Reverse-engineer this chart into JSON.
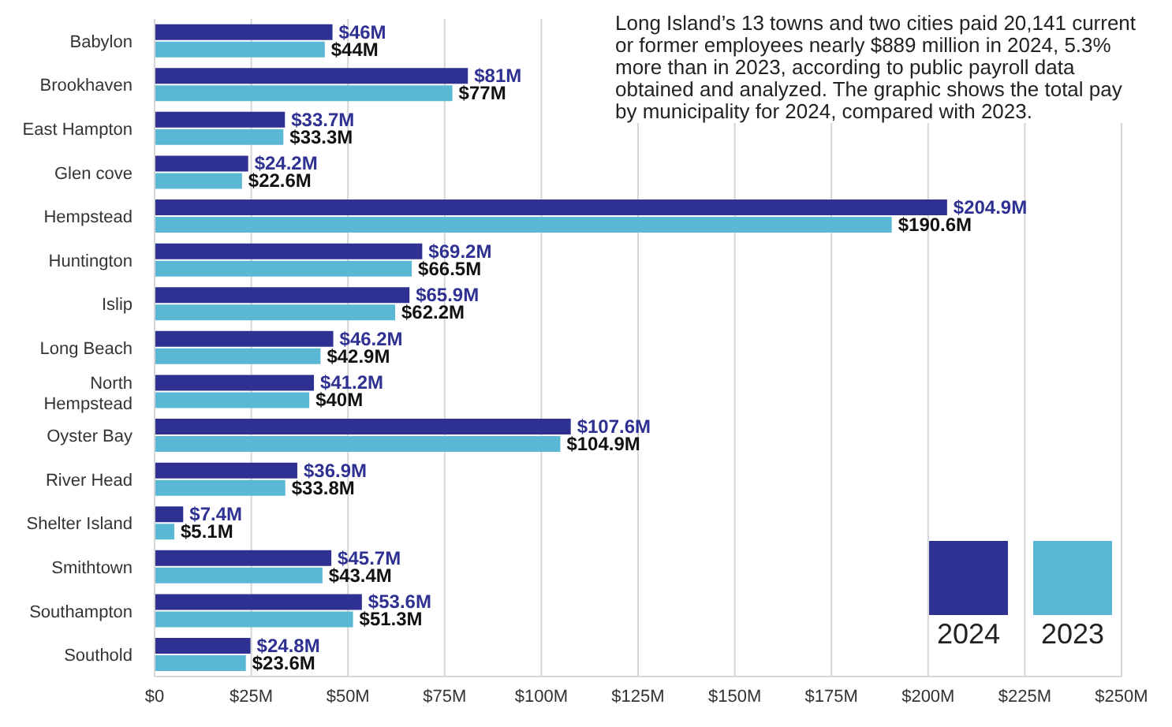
{
  "chart_data": {
    "type": "bar",
    "orientation": "horizontal",
    "categories": [
      "Babylon",
      "Brookhaven",
      "East Hampton",
      "Glen cove",
      "Hempstead",
      "Huntington",
      "Islip",
      "Long Beach",
      "North Hempstead",
      "Oyster Bay",
      "River Head",
      "Shelter Island",
      "Smithtown",
      "Southampton",
      "Southold"
    ],
    "series": [
      {
        "name": "2024",
        "color": "#2e3192",
        "values": [
          46,
          81,
          33.7,
          24.2,
          204.9,
          69.2,
          65.9,
          46.2,
          41.2,
          107.6,
          36.9,
          7.4,
          45.7,
          53.6,
          24.8
        ],
        "value_labels": [
          "$46M",
          "$81M",
          "$33.7M",
          "$24.2M",
          "$204.9M",
          "$69.2M",
          "$65.9M",
          "$46.2M",
          "$41.2M",
          "$107.6M",
          "$36.9M",
          "$7.4M",
          "$45.7M",
          "$53.6M",
          "$24.8M"
        ]
      },
      {
        "name": "2023",
        "color": "#5bb8d4",
        "values": [
          44,
          77,
          33.3,
          22.6,
          190.6,
          66.5,
          62.2,
          42.9,
          40,
          104.9,
          33.8,
          5.1,
          43.4,
          51.3,
          23.6
        ],
        "value_labels": [
          "$44M",
          "$77M",
          "$33.3M",
          "$22.6M",
          "$190.6M",
          "$66.5M",
          "$62.2M",
          "$42.9M",
          "$40M",
          "$104.9M",
          "$33.8M",
          "$5.1M",
          "$43.4M",
          "$51.3M",
          "$23.6M"
        ]
      }
    ],
    "xlim": [
      0,
      250
    ],
    "xticks": [
      {
        "value": 0,
        "label": "$0"
      },
      {
        "value": 25,
        "label": "$25M"
      },
      {
        "value": 50,
        "label": "$50M"
      },
      {
        "value": 75,
        "label": "$75M"
      },
      {
        "value": 100,
        "label": "$100M"
      },
      {
        "value": 125,
        "label": "$125M"
      },
      {
        "value": 150,
        "label": "$150M"
      },
      {
        "value": 175,
        "label": "$175M"
      },
      {
        "value": 200,
        "label": "$200M"
      },
      {
        "value": 225,
        "label": "$225M"
      },
      {
        "value": 250,
        "label": "$250M"
      }
    ],
    "grid": "x",
    "legend": "bottom right",
    "annotations": [
      "Long Island’s 13 towns and two cities paid 20,141 current or former employees nearly $889 million in 2024, 5.3% more than in 2023, according to public payroll data obtained and analyzed. The graphic shows the total pay by municipality for 2024, compared with 2023."
    ]
  }
}
